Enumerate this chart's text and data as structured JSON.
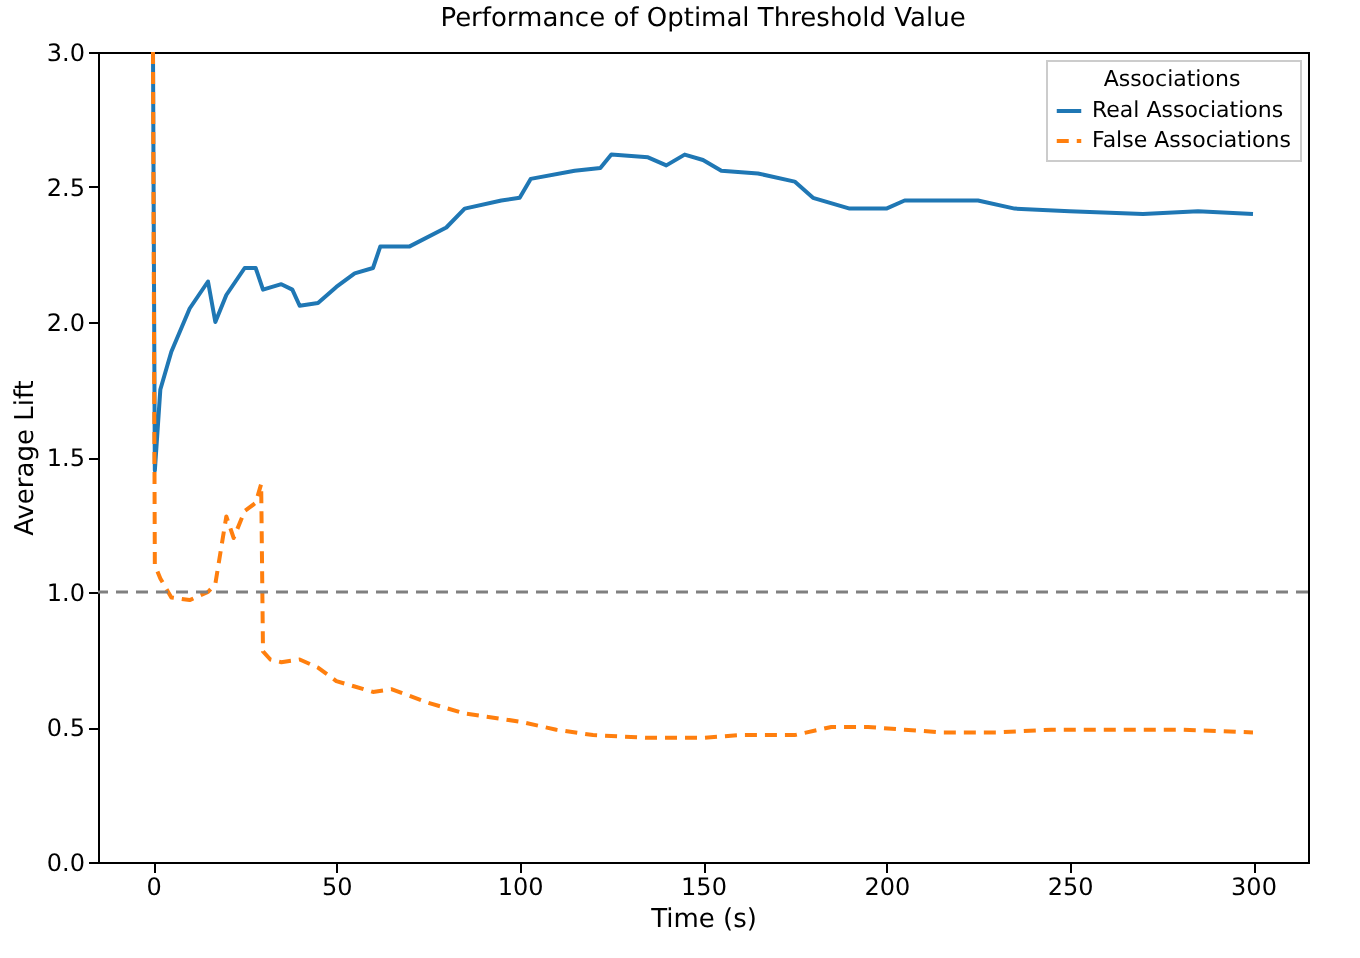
{
  "chart_data": {
    "type": "line",
    "title": "Performance of Optimal Threshold Value",
    "xlabel": "Time (s)",
    "ylabel": "Average Lift",
    "legend_title": "Associations",
    "legend": "top right",
    "grid": false,
    "xlim": [
      -15,
      315
    ],
    "xticks": [
      0,
      50,
      100,
      150,
      200,
      250,
      300
    ],
    "ylim": [
      0,
      3
    ],
    "yticks": [
      {
        "value": 0,
        "label": "0.0"
      },
      0.5,
      {
        "value": 1,
        "label": "1.0"
      },
      1.5,
      {
        "value": 2,
        "label": "2.0"
      },
      2.5,
      {
        "value": 3,
        "label": "3.0"
      }
    ],
    "ref_lines": [
      {
        "axis": "y",
        "value": 1.0,
        "color": "#808080",
        "line_style": "dashed"
      }
    ],
    "series": [
      {
        "name": "Real Associations",
        "color": "#1f77b4",
        "line_style": "solid",
        "x": [
          0,
          0.5,
          2,
          5,
          10,
          15,
          17,
          20,
          25,
          28,
          30,
          35,
          38,
          40,
          45,
          50,
          55,
          60,
          62,
          70,
          80,
          85,
          95,
          100,
          103,
          115,
          122,
          125,
          135,
          140,
          145,
          150,
          155,
          165,
          175,
          180,
          190,
          200,
          205,
          225,
          235,
          250,
          270,
          285,
          300
        ],
        "values": [
          3.0,
          1.45,
          1.75,
          1.89,
          2.05,
          2.15,
          2.0,
          2.1,
          2.2,
          2.2,
          2.12,
          2.14,
          2.12,
          2.06,
          2.07,
          2.13,
          2.18,
          2.2,
          2.28,
          2.28,
          2.35,
          2.42,
          2.45,
          2.46,
          2.53,
          2.56,
          2.57,
          2.62,
          2.61,
          2.58,
          2.62,
          2.6,
          2.56,
          2.55,
          2.52,
          2.46,
          2.42,
          2.42,
          2.45,
          2.45,
          2.42,
          2.41,
          2.4,
          2.41,
          2.4
        ]
      },
      {
        "name": "False Associations",
        "color": "#ff7f0e",
        "line_style": "dashed",
        "x": [
          0,
          0.5,
          2,
          5,
          10,
          15,
          17,
          20,
          22,
          25,
          28,
          29.5,
          30,
          32,
          35,
          40,
          45,
          50,
          55,
          60,
          65,
          75,
          85,
          95,
          100,
          110,
          120,
          135,
          150,
          160,
          175,
          185,
          195,
          205,
          215,
          230,
          245,
          260,
          280,
          300
        ],
        "values": [
          3.0,
          1.1,
          1.05,
          0.98,
          0.97,
          1.0,
          1.03,
          1.28,
          1.2,
          1.3,
          1.33,
          1.4,
          0.78,
          0.75,
          0.74,
          0.75,
          0.72,
          0.67,
          0.65,
          0.63,
          0.64,
          0.59,
          0.55,
          0.53,
          0.52,
          0.49,
          0.47,
          0.46,
          0.46,
          0.47,
          0.47,
          0.5,
          0.5,
          0.49,
          0.48,
          0.48,
          0.49,
          0.49,
          0.49,
          0.48
        ]
      }
    ]
  }
}
